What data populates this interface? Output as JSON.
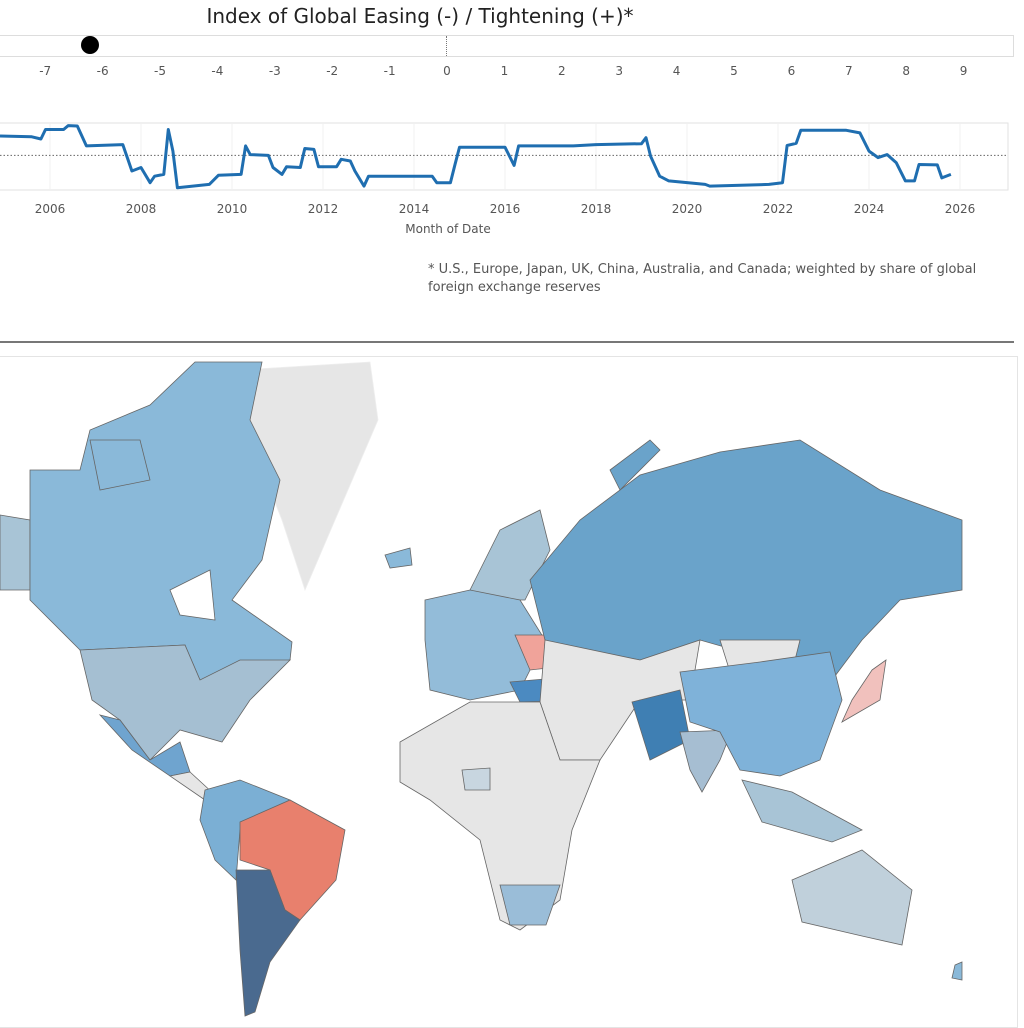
{
  "header": {
    "title": "Index of Global Easing (-) / Tightening (+)*"
  },
  "gauge": {
    "current_value": -6.2,
    "range": [
      -7.5,
      9.5
    ],
    "ticks": [
      "-7",
      "-6",
      "-5",
      "-4",
      "-3",
      "-2",
      "-1",
      "0",
      "1",
      "2",
      "3",
      "4",
      "5",
      "6",
      "7",
      "8",
      "9"
    ]
  },
  "chart_data": {
    "type": "line",
    "title": "Index of Global Easing (-) / Tightening (+)*",
    "xlabel": "Month of Date",
    "ylabel": "",
    "x_ticks": [
      "2006",
      "2008",
      "2010",
      "2012",
      "2014",
      "2016",
      "2018",
      "2020",
      "2022",
      "2024",
      "2026"
    ],
    "xlim": [
      2004.9,
      2027.2
    ],
    "ylim": [
      -8,
      7.5
    ],
    "reference_line": 0,
    "color": "#1f6eb0",
    "series": [
      {
        "x": [
          2004.9,
          2005.6,
          2005.8,
          2005.9,
          2006.3,
          2006.4,
          2006.6,
          2006.8,
          2007.6,
          2007.8,
          2008.0,
          2008.2,
          2008.3,
          2008.5,
          2008.6,
          2008.7,
          2008.8,
          2009.5,
          2009.7,
          2010.2,
          2010.3,
          2010.4,
          2010.8,
          2010.9,
          2011.1,
          2011.2,
          2011.5,
          2011.6,
          2011.8,
          2011.9,
          2012.3,
          2012.4,
          2012.6,
          2012.7,
          2012.9,
          2013.0,
          2014.4,
          2014.5,
          2014.8,
          2014.9,
          2015.0,
          2016.0,
          2016.2,
          2016.3,
          2017.5,
          2018.0,
          2019.0,
          2019.1,
          2019.2,
          2019.4,
          2019.6,
          2020.4,
          2020.5,
          2021.8,
          2022.1,
          2022.2,
          2022.4,
          2022.5,
          2023.5,
          2023.8,
          2024.0,
          2024.2,
          2024.4,
          2024.6,
          2024.8,
          2025.0,
          2025.1,
          2025.5,
          2025.6,
          2025.8
        ],
        "y": [
          4.5,
          4.3,
          3.8,
          6.0,
          6.0,
          6.9,
          6.8,
          2.2,
          2.5,
          -3.6,
          -2.8,
          -6.3,
          -4.8,
          -4.4,
          6.0,
          1.0,
          -7.5,
          -6.7,
          -4.6,
          -4.4,
          2.2,
          0.2,
          0,
          -2.8,
          -4.4,
          -2.6,
          -2.8,
          1.6,
          1.4,
          -2.6,
          -2.6,
          -0.9,
          -1.3,
          -3.6,
          -7.1,
          -4.8,
          -4.8,
          -6.3,
          -6.3,
          -2.1,
          1.9,
          1.9,
          -2.3,
          2.2,
          2.2,
          2.5,
          2.7,
          4.1,
          -0.2,
          -4.8,
          -5.9,
          -6.7,
          -7.1,
          -6.7,
          -6.3,
          2.3,
          2.8,
          5.8,
          5.8,
          5.2,
          1.0,
          -0.5,
          0.2,
          -1.7,
          -5.9,
          -5.9,
          -2.1,
          -2.2,
          -5.2,
          -4.4
        ]
      }
    ]
  },
  "footnote": "* U.S., Europe, Japan, UK, China, Australia, and Canada;  weighted by share of global foreign exchange reserves",
  "map": {
    "colors": {
      "no_data": "#e6e6e6",
      "easing_strong": "#3f7fb3",
      "easing": "#7fb2d9",
      "easing_light": "#a8c4d6",
      "tightening": "#e8806d",
      "tightening_light": "#f0a39a",
      "argentina": "#4a6a8f"
    }
  }
}
